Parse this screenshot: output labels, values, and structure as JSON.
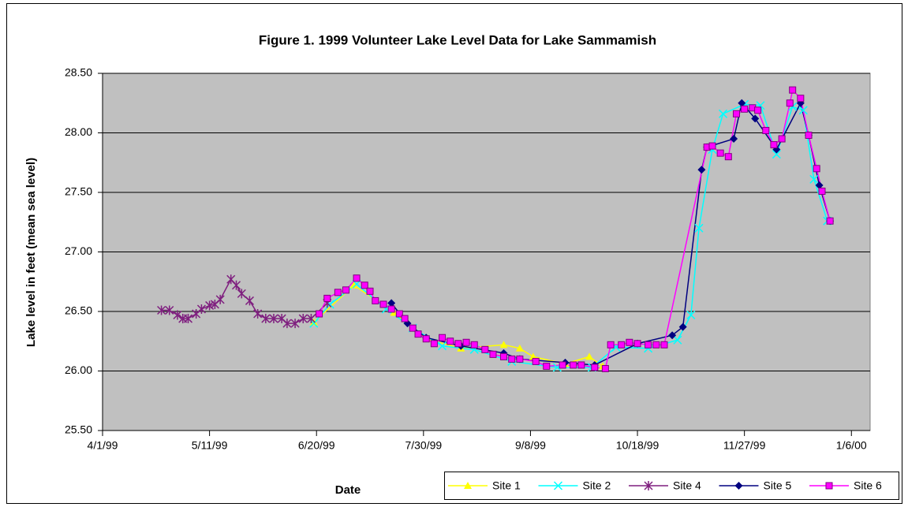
{
  "chart_data": {
    "type": "line",
    "title": "Figure 1.  1999 Volunteer Lake Level Data for Lake Sammamish",
    "xlabel": "Date",
    "ylabel": "Lake level in feet (mean sea level)",
    "xlim": [
      "1999-04-01",
      "2000-01-13"
    ],
    "xticks": [
      {
        "value": "1999-04-01",
        "label": "4/1/99"
      },
      {
        "value": "1999-05-11",
        "label": "5/11/99"
      },
      {
        "value": "1999-06-20",
        "label": "6/20/99"
      },
      {
        "value": "1999-07-30",
        "label": "7/30/99"
      },
      {
        "value": "1999-09-08",
        "label": "9/8/99"
      },
      {
        "value": "1999-10-18",
        "label": "10/18/99"
      },
      {
        "value": "1999-11-27",
        "label": "11/27/99"
      },
      {
        "value": "2000-01-06",
        "label": "1/6/00"
      }
    ],
    "ylim": [
      25.5,
      28.5
    ],
    "yticks": [
      {
        "value": 25.5,
        "label": "25.50"
      },
      {
        "value": 26,
        "label": "26.00"
      },
      {
        "value": 26.5,
        "label": "26.50"
      },
      {
        "value": 27,
        "label": "27.00"
      },
      {
        "value": 27.5,
        "label": "27.50"
      },
      {
        "value": 28,
        "label": "28.00"
      },
      {
        "value": 28.5,
        "label": "28.50"
      }
    ],
    "grid": true,
    "legend": "bottom-right",
    "background": "#c0c0c0",
    "series": [
      {
        "name": "Site 1",
        "color": "#ffff00",
        "marker": "triangle",
        "x": [
          "1999-06-19",
          "1999-07-04",
          "1999-07-19",
          "1999-07-31",
          "1999-08-13",
          "1999-08-29",
          "1999-09-04",
          "1999-09-09",
          "1999-09-21",
          "1999-09-30",
          "1999-10-05"
        ],
        "values": [
          26.41,
          26.72,
          26.49,
          26.27,
          26.19,
          26.22,
          26.19,
          26.12,
          26.06,
          26.12,
          26.04
        ]
      },
      {
        "name": "Site 2",
        "color": "#00ffff",
        "marker": "x",
        "x": [
          "1999-06-19",
          "1999-06-25",
          "1999-07-05",
          "1999-07-16",
          "1999-07-26",
          "1999-08-06",
          "1999-08-18",
          "1999-09-01",
          "1999-09-18",
          "1999-10-01",
          "1999-10-10",
          "1999-10-22",
          "1999-11-02",
          "1999-11-07",
          "1999-11-10",
          "1999-11-15",
          "1999-11-19",
          "1999-11-27",
          "1999-12-03",
          "1999-12-09",
          "1999-12-15",
          "1999-12-19",
          "1999-12-23",
          "1999-12-28"
        ],
        "values": [
          26.4,
          26.56,
          26.73,
          26.52,
          26.36,
          26.21,
          26.18,
          26.08,
          26.03,
          26.03,
          26.2,
          26.19,
          26.26,
          26.47,
          27.2,
          27.86,
          28.16,
          28.24,
          28.23,
          27.82,
          28.22,
          28.19,
          27.61,
          27.26
        ]
      },
      {
        "name": "Site 4",
        "color": "#7f1f7f",
        "marker": "star",
        "x": [
          "1999-04-23",
          "1999-04-26",
          "1999-04-29",
          "1999-05-01",
          "1999-05-03",
          "1999-05-06",
          "1999-05-08",
          "1999-05-11",
          "1999-05-13",
          "1999-05-15",
          "1999-05-19",
          "1999-05-21",
          "1999-05-23",
          "1999-05-26",
          "1999-05-29",
          "1999-06-01",
          "1999-06-04",
          "1999-06-07",
          "1999-06-09",
          "1999-06-12",
          "1999-06-15",
          "1999-06-18",
          "1999-06-24"
        ],
        "values": [
          26.51,
          26.51,
          26.47,
          26.44,
          26.44,
          26.48,
          26.52,
          26.55,
          26.56,
          26.6,
          26.77,
          26.72,
          26.65,
          26.59,
          26.48,
          26.44,
          26.44,
          26.44,
          26.4,
          26.4,
          26.44,
          26.44,
          26.57
        ]
      },
      {
        "name": "Site 5",
        "color": "#000080",
        "marker": "diamond",
        "x": [
          "1999-07-18",
          "1999-07-24",
          "1999-07-31",
          "1999-08-13",
          "1999-08-29",
          "1999-09-04",
          "1999-09-21",
          "1999-10-02",
          "1999-10-18",
          "1999-10-31",
          "1999-11-04",
          "1999-11-11",
          "1999-11-13",
          "1999-11-23",
          "1999-11-26",
          "1999-12-01",
          "1999-12-09",
          "1999-12-18",
          "1999-12-21",
          "1999-12-25",
          "1999-12-29"
        ],
        "values": [
          26.57,
          26.4,
          26.28,
          26.21,
          26.15,
          26.1,
          26.07,
          26.05,
          26.23,
          26.3,
          26.37,
          27.69,
          27.88,
          27.95,
          28.25,
          28.12,
          27.86,
          28.25,
          27.98,
          27.56,
          27.26
        ]
      },
      {
        "name": "Site 6",
        "color": "#ff00ff",
        "marker": "square",
        "x": [
          "1999-06-21",
          "1999-06-24",
          "1999-06-28",
          "1999-07-01",
          "1999-07-05",
          "1999-07-08",
          "1999-07-10",
          "1999-07-12",
          "1999-07-15",
          "1999-07-18",
          "1999-07-21",
          "1999-07-23",
          "1999-07-26",
          "1999-07-28",
          "1999-07-31",
          "1999-08-03",
          "1999-08-06",
          "1999-08-09",
          "1999-08-12",
          "1999-08-15",
          "1999-08-18",
          "1999-08-22",
          "1999-08-25",
          "1999-08-29",
          "1999-09-01",
          "1999-09-04",
          "1999-09-10",
          "1999-09-14",
          "1999-09-20",
          "1999-09-24",
          "1999-09-27",
          "1999-10-02",
          "1999-10-06",
          "1999-10-08",
          "1999-10-12",
          "1999-10-15",
          "1999-10-18",
          "1999-10-22",
          "1999-10-25",
          "1999-10-28",
          "1999-11-13",
          "1999-11-15",
          "1999-11-18",
          "1999-11-21",
          "1999-11-24",
          "1999-11-27",
          "1999-11-30",
          "1999-12-02",
          "1999-12-05",
          "1999-12-08",
          "1999-12-11",
          "1999-12-14",
          "1999-12-15",
          "1999-12-18",
          "1999-12-21",
          "1999-12-24",
          "1999-12-26",
          "1999-12-29"
        ],
        "values": [
          26.48,
          26.61,
          26.66,
          26.68,
          26.78,
          26.72,
          26.67,
          26.59,
          26.56,
          26.52,
          26.48,
          26.44,
          26.36,
          26.31,
          26.27,
          26.23,
          26.28,
          26.25,
          26.23,
          26.24,
          26.22,
          26.18,
          26.14,
          26.12,
          26.1,
          26.1,
          26.08,
          26.04,
          26.05,
          26.05,
          26.05,
          26.03,
          26.02,
          26.22,
          26.22,
          26.24,
          26.23,
          26.22,
          26.22,
          26.22,
          27.88,
          27.89,
          27.83,
          27.8,
          28.16,
          28.2,
          28.21,
          28.19,
          28.02,
          27.9,
          27.95,
          28.25,
          28.36,
          28.29,
          27.98,
          27.7,
          27.51,
          27.26
        ]
      }
    ]
  }
}
